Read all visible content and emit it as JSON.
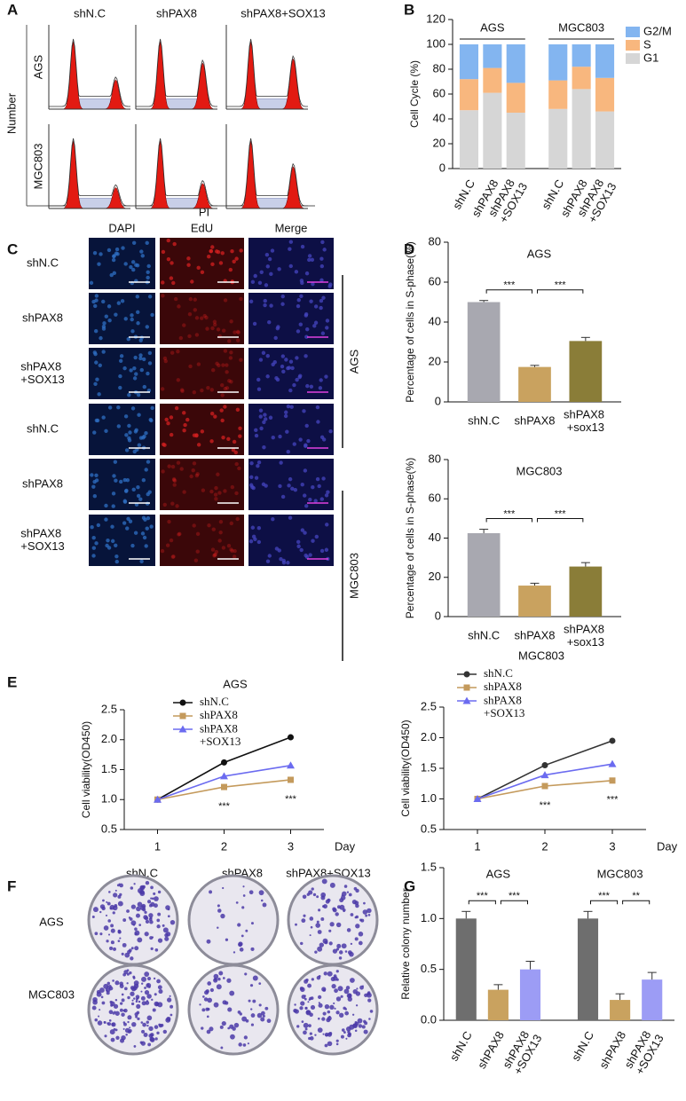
{
  "figure": {
    "panel_labels": [
      "A",
      "B",
      "C",
      "D",
      "E",
      "F",
      "G"
    ],
    "flow_cytometry": {
      "columns": [
        "shN.C",
        "shPAX8",
        "shPAX8+SOX13"
      ],
      "rows": [
        "AGS",
        "MGC803"
      ],
      "y_label": "Number",
      "x_label": "PI"
    },
    "edu_staining": {
      "columns": [
        "DAPI",
        "EdU",
        "Merge"
      ],
      "rows": [
        "shN.C",
        "shPAX8",
        "shPAX8 +SOX13",
        "shN.C",
        "shPAX8",
        "shPAX8 +SOX13"
      ],
      "groups": [
        "AGS",
        "MGC803"
      ]
    },
    "colony_formation": {
      "columns": [
        "shN.C",
        "shPAX8",
        "shPAX8+SOX13"
      ],
      "rows": [
        "AGS",
        "MGC803"
      ]
    }
  },
  "chart_data": [
    {
      "type": "stacked_bar",
      "y_label": "Cell Cycle (%)",
      "groups": [
        "AGS",
        "MGC803"
      ],
      "categories": [
        "shN.C",
        "shPAX8",
        "shPAX8 +SOX13",
        "shN.C",
        "shPAX8",
        "shPAX8 +SOX13"
      ],
      "series": [
        {
          "name": "G2/M",
          "color": "#83b5f0",
          "values": [
            28,
            19,
            31,
            29,
            18,
            27
          ]
        },
        {
          "name": "S",
          "color": "#f8b77e",
          "values": [
            25,
            20,
            24,
            23,
            18,
            27
          ]
        },
        {
          "name": "G1",
          "color": "#d6d6d6",
          "values": [
            47,
            61,
            45,
            48,
            64,
            46
          ]
        }
      ],
      "ylim": [
        0,
        120
      ],
      "yticks": [
        0,
        20,
        40,
        60,
        80,
        100,
        120
      ]
    },
    {
      "type": "bar",
      "title": "AGS",
      "y_label": "Percentage of cells in S-phase(%)",
      "categories": [
        "shN.C",
        "shPAX8",
        "shPAX8 +sox13"
      ],
      "values": [
        50,
        17.5,
        30.5
      ],
      "errors": [
        0.8,
        0.8,
        1.8
      ],
      "colors": [
        "#a8a8b0",
        "#c9a25f",
        "#8a7d38"
      ],
      "significance": [
        "***",
        "***"
      ],
      "ylim": [
        0,
        80
      ],
      "yticks": [
        0,
        20,
        40,
        60,
        80
      ]
    },
    {
      "type": "bar",
      "title": "MGC803",
      "y_label": "Percentage of cells in S-phase(%)",
      "categories": [
        "shN.C",
        "shPAX8",
        "shPAX8 +sox13"
      ],
      "values": [
        42.5,
        15.8,
        25.5
      ],
      "errors": [
        2,
        1.2,
        2
      ],
      "colors": [
        "#a8a8b0",
        "#c9a25f",
        "#8a7d38"
      ],
      "significance": [
        "***",
        "***"
      ],
      "ylim": [
        0,
        80
      ],
      "yticks": [
        0,
        20,
        40,
        60,
        80
      ]
    },
    {
      "type": "line",
      "title": "AGS",
      "y_label": "Cell viability(OD450)",
      "x_label": "Day",
      "x": [
        1,
        2,
        3
      ],
      "series": [
        {
          "name": "shN.C",
          "color": "#111111",
          "marker": "circle",
          "values": [
            1,
            1.62,
            2.04
          ]
        },
        {
          "name": "shPAX8",
          "color": "#c49a5c",
          "marker": "square",
          "values": [
            1,
            1.21,
            1.33
          ]
        },
        {
          "name": "shPAX8 +SOX13",
          "color": "#6b6bf0",
          "marker": "triangle",
          "values": [
            1,
            1.39,
            1.57
          ]
        }
      ],
      "annotations": [
        {
          "x": 2,
          "text": "***"
        },
        {
          "x": 3,
          "text": "***"
        }
      ],
      "xlim": [
        0.5,
        3.5
      ],
      "xticks": [
        1,
        2,
        3
      ],
      "ylim": [
        0.5,
        2.5
      ],
      "yticks": [
        0.5,
        {
          "value": 1,
          "label": "1.0"
        },
        1.5,
        {
          "value": 2,
          "label": "2.0"
        },
        2.5
      ]
    },
    {
      "type": "line",
      "title": "MGC803",
      "y_label": "Cell viability(OD450)",
      "x_label": "Day",
      "x": [
        1,
        2,
        3
      ],
      "series": [
        {
          "name": "shN.C",
          "color": "#333333",
          "marker": "circle",
          "values": [
            1,
            1.55,
            1.95
          ]
        },
        {
          "name": "shPAX8",
          "color": "#c49a5c",
          "marker": "square",
          "values": [
            1,
            1.21,
            1.3
          ]
        },
        {
          "name": "shPAX8 +SOX13",
          "color": "#6b6bf0",
          "marker": "triangle",
          "values": [
            1,
            1.39,
            1.57
          ]
        }
      ],
      "annotations": [
        {
          "x": 2,
          "text": "***"
        },
        {
          "x": 3,
          "text": "***"
        }
      ],
      "xlim": [
        0.5,
        3.5
      ],
      "xticks": [
        1,
        2,
        3
      ],
      "ylim": [
        0.5,
        2.5
      ],
      "yticks": [
        0.5,
        {
          "value": 1,
          "label": "1.0"
        },
        1.5,
        {
          "value": 2,
          "label": "2.0"
        },
        2.5
      ]
    },
    {
      "type": "bar",
      "y_label": "Relative colony number",
      "groups": [
        "AGS",
        "MGC803"
      ],
      "categories": [
        "shN.C",
        "shPAX8",
        "shPAX8 +SOX13",
        "shN.C",
        "shPAX8",
        "shPAX8 +SOX13"
      ],
      "values": [
        1,
        0.3,
        0.5,
        1,
        0.2,
        0.4
      ],
      "errors": [
        0.07,
        0.05,
        0.08,
        0.07,
        0.06,
        0.07
      ],
      "colors": [
        "#6e6e6e",
        "#c9a25f",
        "#9c9cf5",
        "#6e6e6e",
        "#c9a25f",
        "#9c9cf5"
      ],
      "significance": [
        "***",
        "***",
        "***",
        "**"
      ],
      "ylim": [
        0,
        1.5
      ],
      "yticks": [
        {
          "value": 0,
          "label": "0.0"
        },
        0.5,
        {
          "value": 1,
          "label": "1.0"
        },
        1.5
      ]
    }
  ]
}
